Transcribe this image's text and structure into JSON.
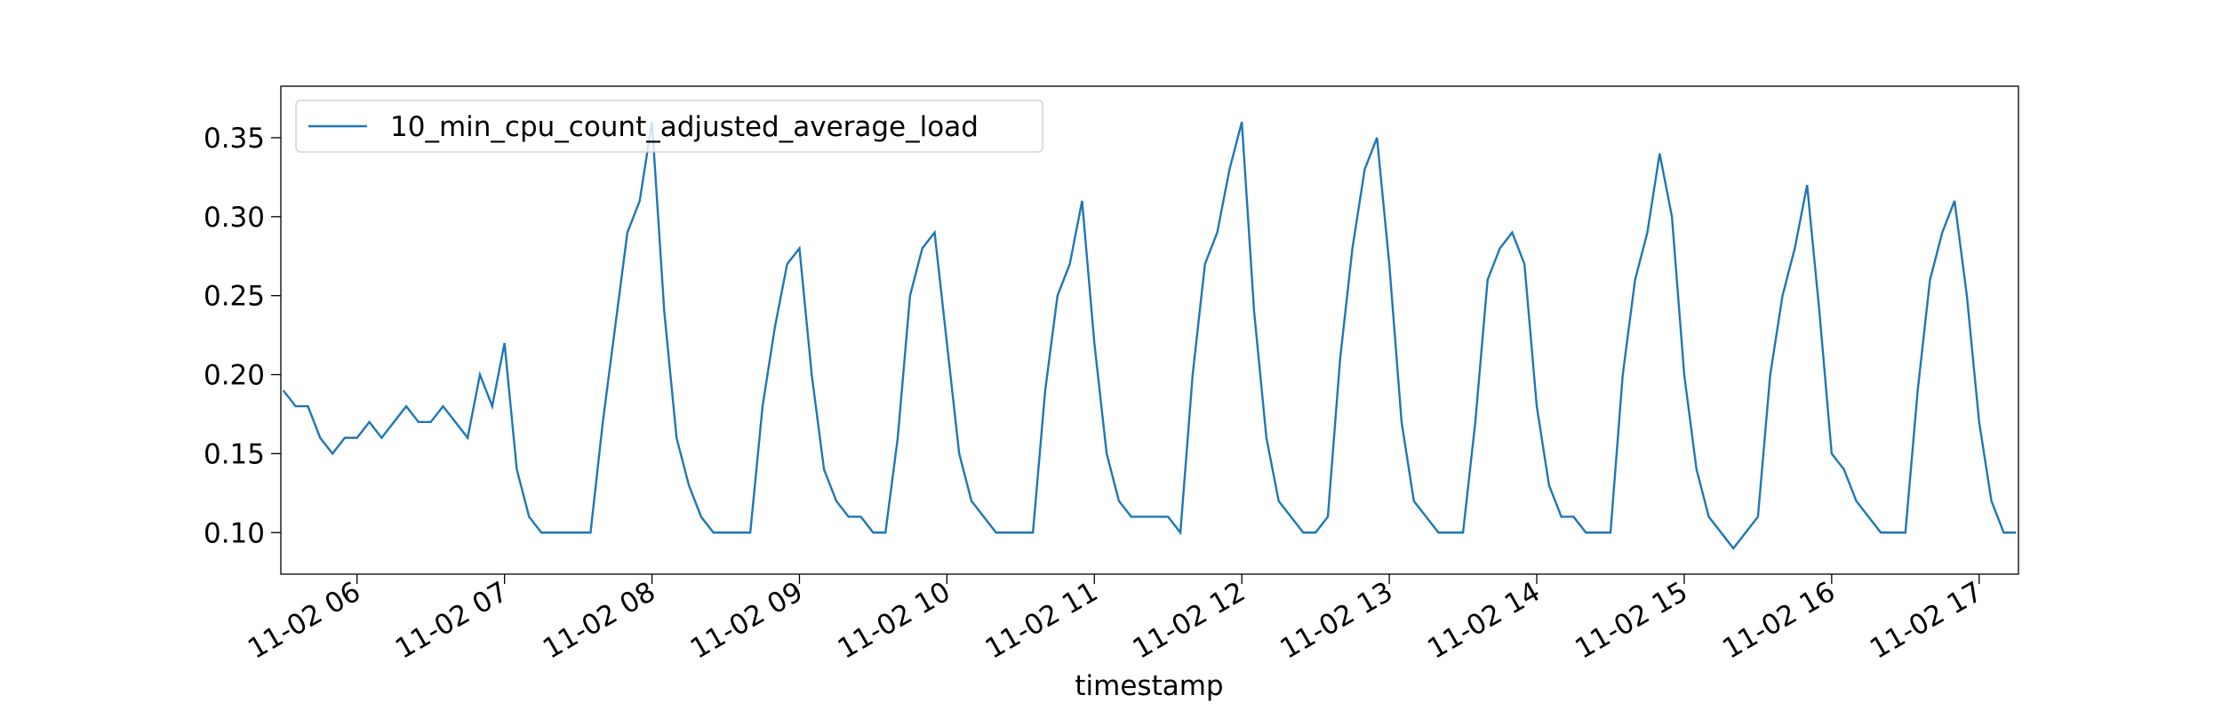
{
  "chart_data": {
    "type": "line",
    "xlabel": "timestamp",
    "x": [
      330,
      335,
      340,
      345,
      350,
      355,
      360,
      365,
      370,
      375,
      380,
      385,
      390,
      395,
      400,
      405,
      410,
      415,
      420,
      425,
      430,
      435,
      440,
      445,
      450,
      455,
      460,
      465,
      470,
      475,
      480,
      485,
      490,
      495,
      500,
      505,
      510,
      515,
      520,
      525,
      530,
      535,
      540,
      545,
      550,
      555,
      560,
      565,
      570,
      575,
      580,
      585,
      590,
      595,
      600,
      605,
      610,
      615,
      620,
      625,
      630,
      635,
      640,
      645,
      650,
      655,
      660,
      665,
      670,
      675,
      680,
      685,
      690,
      695,
      700,
      705,
      710,
      715,
      720,
      725,
      730,
      735,
      740,
      745,
      750,
      755,
      760,
      765,
      770,
      775,
      780,
      785,
      790,
      795,
      800,
      805,
      810,
      815,
      820,
      825,
      830,
      835,
      840,
      845,
      850,
      855,
      860,
      865,
      870,
      875,
      880,
      885,
      890,
      895,
      900,
      905,
      910,
      915,
      920,
      925,
      930,
      935,
      940,
      945,
      950,
      955,
      960,
      965,
      970,
      975,
      980,
      985,
      990,
      995,
      1000,
      1005,
      1010,
      1015,
      1020,
      1025,
      1030,
      1035
    ],
    "series": [
      {
        "name": "10_min_cpu_count_adjusted_average_load",
        "color": "#1f77b4",
        "values": [
          0.19,
          0.18,
          0.18,
          0.16,
          0.15,
          0.16,
          0.16,
          0.17,
          0.16,
          0.17,
          0.18,
          0.17,
          0.17,
          0.18,
          0.17,
          0.16,
          0.2,
          0.18,
          0.22,
          0.14,
          0.11,
          0.1,
          0.1,
          0.1,
          0.1,
          0.1,
          0.17,
          0.23,
          0.29,
          0.31,
          0.36,
          0.24,
          0.16,
          0.13,
          0.11,
          0.1,
          0.1,
          0.1,
          0.1,
          0.18,
          0.23,
          0.27,
          0.28,
          0.2,
          0.14,
          0.12,
          0.11,
          0.11,
          0.1,
          0.1,
          0.16,
          0.25,
          0.28,
          0.29,
          0.22,
          0.15,
          0.12,
          0.11,
          0.1,
          0.1,
          0.1,
          0.1,
          0.19,
          0.25,
          0.27,
          0.31,
          0.22,
          0.15,
          0.12,
          0.11,
          0.11,
          0.11,
          0.11,
          0.1,
          0.2,
          0.27,
          0.29,
          0.33,
          0.36,
          0.24,
          0.16,
          0.12,
          0.11,
          0.1,
          0.1,
          0.11,
          0.21,
          0.28,
          0.33,
          0.35,
          0.27,
          0.17,
          0.12,
          0.11,
          0.1,
          0.1,
          0.1,
          0.17,
          0.26,
          0.28,
          0.29,
          0.27,
          0.18,
          0.13,
          0.11,
          0.11,
          0.1,
          0.1,
          0.1,
          0.2,
          0.26,
          0.29,
          0.34,
          0.3,
          0.2,
          0.14,
          0.11,
          0.1,
          0.09,
          0.1,
          0.11,
          0.2,
          0.25,
          0.28,
          0.32,
          0.24,
          0.15,
          0.14,
          0.12,
          0.11,
          0.1,
          0.1,
          0.1,
          0.19,
          0.26,
          0.29,
          0.31,
          0.25,
          0.17,
          0.12,
          0.1,
          0.1
        ]
      }
    ],
    "xlim": [
      329,
      1036
    ],
    "xticks": [
      {
        "value": 360,
        "label": "11-02 06"
      },
      {
        "value": 420,
        "label": "11-02 07"
      },
      {
        "value": 480,
        "label": "11-02 08"
      },
      {
        "value": 540,
        "label": "11-02 09"
      },
      {
        "value": 600,
        "label": "11-02 10"
      },
      {
        "value": 660,
        "label": "11-02 11"
      },
      {
        "value": 720,
        "label": "11-02 12"
      },
      {
        "value": 780,
        "label": "11-02 13"
      },
      {
        "value": 840,
        "label": "11-02 14"
      },
      {
        "value": 900,
        "label": "11-02 15"
      },
      {
        "value": 960,
        "label": "11-02 16"
      },
      {
        "value": 1020,
        "label": "11-02 17"
      }
    ],
    "ylim": [
      0.0737,
      0.3826
    ],
    "yticks": [
      {
        "value": 0.1,
        "label": "0.10"
      },
      0.15,
      {
        "value": 0.2,
        "label": "0.20"
      },
      0.25,
      {
        "value": 0.3,
        "label": "0.30"
      },
      0.35
    ],
    "legend": "upper left"
  }
}
